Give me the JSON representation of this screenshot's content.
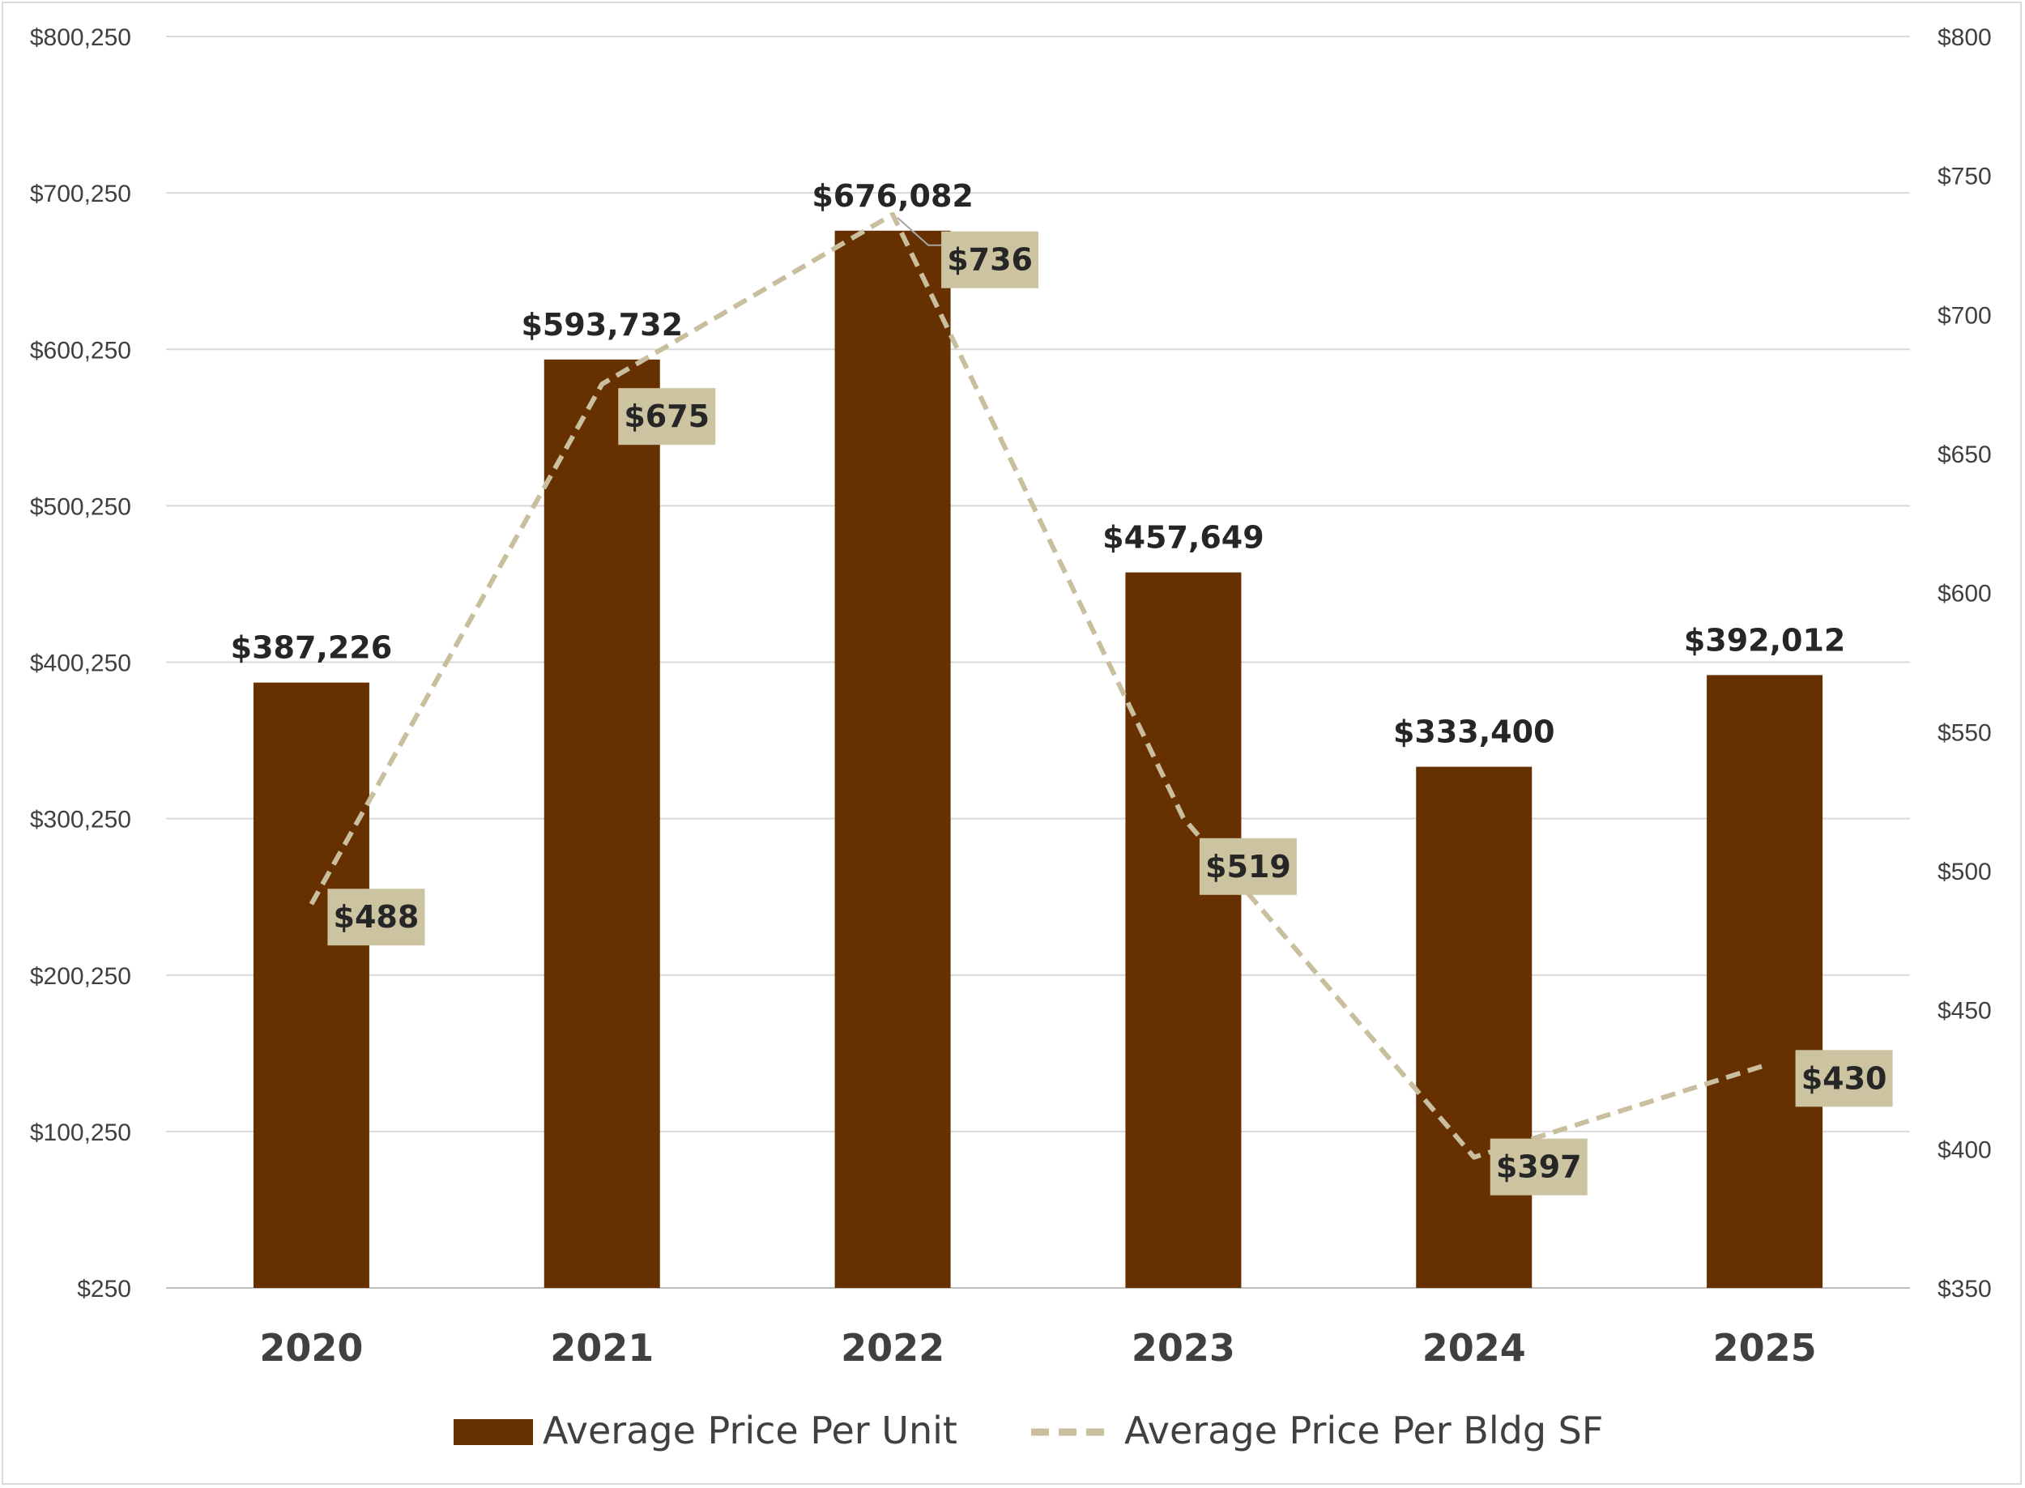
{
  "chart_data": {
    "type": "bar",
    "categories": [
      "2020",
      "2021",
      "2022",
      "2023",
      "2024",
      "2025"
    ],
    "series": [
      {
        "name": "Average Price Per Unit",
        "type": "bar",
        "axis": "left",
        "values": [
          387226,
          593732,
          676082,
          457649,
          333400,
          392012
        ],
        "labels": [
          "$387,226",
          "$593,732",
          "$676,082",
          "$457,649",
          "$333,400",
          "$392,012"
        ],
        "color": "#663000"
      },
      {
        "name": "Average Price Per Bldg SF",
        "type": "line",
        "style": "dashed",
        "axis": "right",
        "values": [
          488,
          675,
          736,
          519,
          397,
          430
        ],
        "labels": [
          "$488",
          "$675",
          "$736",
          "$519",
          "$397",
          "$430"
        ],
        "color": "#c9bf9f"
      }
    ],
    "y_left": {
      "min": 250,
      "max": 800250,
      "ticks": [
        "$250",
        "$100,250",
        "$200,250",
        "$300,250",
        "$400,250",
        "$500,250",
        "$600,250",
        "$700,250",
        "$800,250"
      ]
    },
    "y_right": {
      "min": 350,
      "max": 800,
      "ticks": [
        "$350",
        "$400",
        "$450",
        "$500",
        "$550",
        "$600",
        "$650",
        "$700",
        "$750",
        "$800"
      ]
    },
    "grid": "horizontal",
    "legend": "bottom",
    "label_box_color": "#ccc3a0"
  }
}
